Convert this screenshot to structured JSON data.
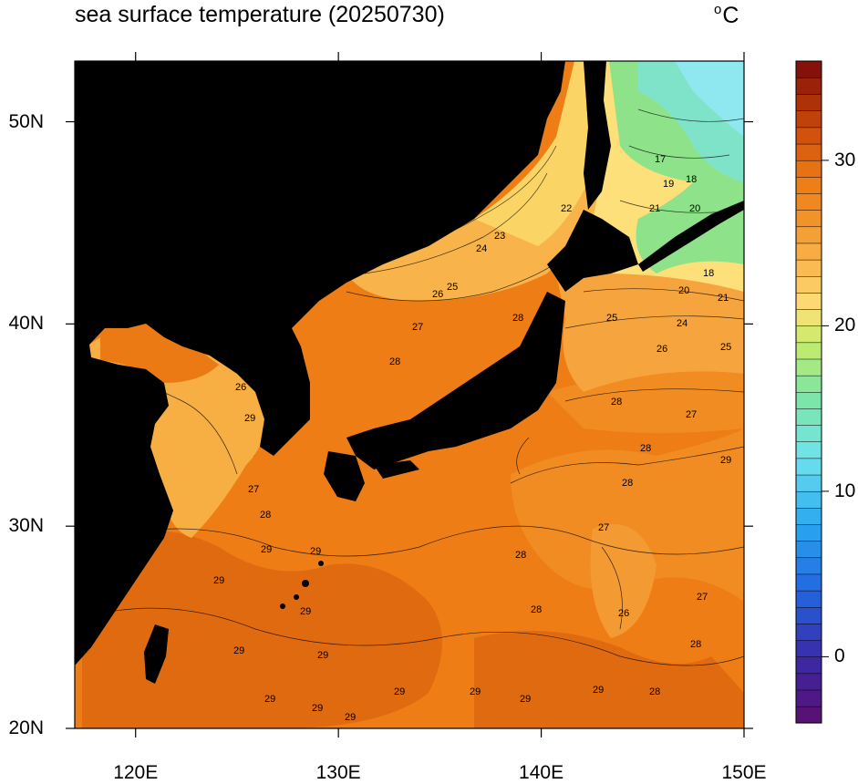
{
  "title": "sea surface temperature (20250730)",
  "unit_symbol": "o",
  "unit_letter": "C",
  "map": {
    "lon_range": [
      117,
      150
    ],
    "lat_range": [
      20,
      53
    ],
    "lon_ticks": [
      {
        "value": 120,
        "label": "120E"
      },
      {
        "value": 130,
        "label": "130E"
      },
      {
        "value": 140,
        "label": "140E"
      },
      {
        "value": 150,
        "label": "150E"
      }
    ],
    "lat_ticks": [
      {
        "value": 20,
        "label": "20N"
      },
      {
        "value": 30,
        "label": "30N"
      },
      {
        "value": 40,
        "label": "40N"
      },
      {
        "value": 50,
        "label": "50N"
      }
    ],
    "land_color": "#000000",
    "contour_labels": [
      "17",
      "18",
      "19",
      "20",
      "21",
      "22",
      "23",
      "24",
      "25",
      "26",
      "27",
      "28",
      "29"
    ]
  },
  "colorbar": {
    "min": -4,
    "max": 36,
    "step": 1,
    "ticks": [
      {
        "value": 0,
        "label": "0"
      },
      {
        "value": 10,
        "label": "10"
      },
      {
        "value": 20,
        "label": "20"
      },
      {
        "value": 30,
        "label": "30"
      }
    ]
  }
}
